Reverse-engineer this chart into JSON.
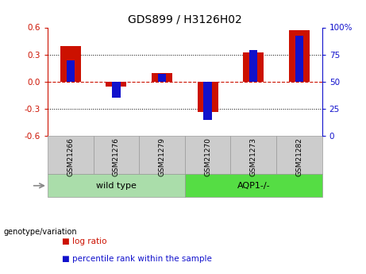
{
  "title": "GDS899 / H3126H02",
  "samples": [
    "GSM21266",
    "GSM21276",
    "GSM21279",
    "GSM21270",
    "GSM21273",
    "GSM21282"
  ],
  "log_ratio": [
    0.39,
    -0.05,
    0.1,
    -0.33,
    0.32,
    0.57
  ],
  "percentile_rank": [
    70,
    35,
    57,
    15,
    79,
    92
  ],
  "ylim": [
    -0.6,
    0.6
  ],
  "yticks": [
    -0.6,
    -0.3,
    0.0,
    0.3,
    0.6
  ],
  "right_yticks": [
    0,
    25,
    50,
    75,
    100
  ],
  "right_ylim": [
    0,
    100
  ],
  "bar_color_red": "#cc1100",
  "bar_color_blue": "#1111cc",
  "wild_type_color": "#aaddaa",
  "aqp_color": "#55dd44",
  "sample_box_color": "#cccccc",
  "label_log_ratio": "log ratio",
  "label_percentile": "percentile rank within the sample",
  "genotype_label": "genotype/variation",
  "genotype_labels": [
    "wild type",
    "AQP1-/-"
  ]
}
